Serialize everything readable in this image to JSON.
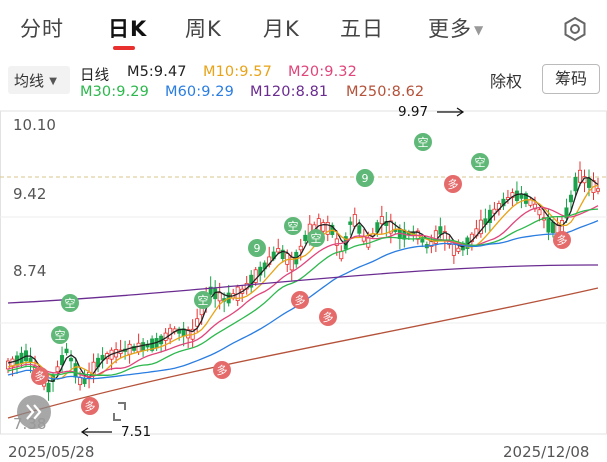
{
  "tabs": {
    "items": [
      "分时",
      "日K",
      "周K",
      "月K",
      "五日",
      "更多"
    ],
    "active": "日K"
  },
  "ma_legend": {
    "selector": "均线",
    "line_label": "日线",
    "ma5": "M5:9.47",
    "ma10": "M10:9.57",
    "ma20": "M20:9.32",
    "ma30": "M30:9.29",
    "ma60": "M60:9.29",
    "ma120": "M120:8.81",
    "ma250": "M250:8.62",
    "colors": {
      "ma5": "#222222",
      "ma10": "#e8a317",
      "ma20": "#e0457b",
      "ma30": "#2db84d",
      "ma60": "#2a7de1",
      "ma120": "#6a2c91",
      "ma250": "#b5523a"
    }
  },
  "buttons": {
    "chuquan": "除权",
    "chouma": "筹码"
  },
  "price_axis": {
    "high": "10.10",
    "mid": "9.42",
    "low": "8.74",
    "bottom": "7.38"
  },
  "annotations": {
    "max": "9.97",
    "min": "7.51"
  },
  "date_axis": {
    "start": "2025/05/28",
    "end": "2025/12/08"
  },
  "markers": {
    "long": "多",
    "short": "空",
    "nine": "9"
  },
  "colors": {
    "up": "#e8312f",
    "down": "#1aa34a",
    "accent": "#e8312f"
  }
}
